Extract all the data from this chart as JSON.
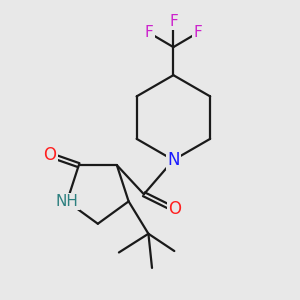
{
  "background_color": "#e8e8e8",
  "bond_color": "#1a1a1a",
  "bond_width": 1.6,
  "atom_colors": {
    "N_pip": "#1a1aff",
    "N_h": "#2d8080",
    "O": "#ff2020",
    "F": "#cc22cc",
    "C": "#1a1a1a"
  },
  "font_size_N": 12,
  "font_size_O": 12,
  "font_size_F": 11,
  "font_size_NH": 11
}
